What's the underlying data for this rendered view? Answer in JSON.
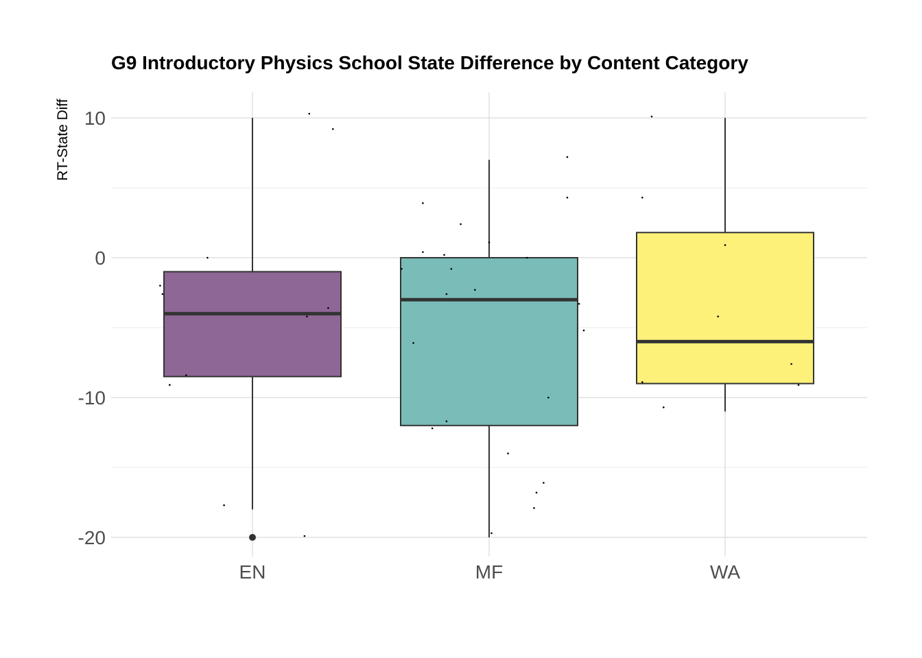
{
  "chart_data": {
    "type": "box",
    "title": "G9 Introductory Physics School State Difference by Content Category",
    "xlabel": "",
    "ylabel": "RT-State Diff",
    "ylim": [
      -21.5,
      11.5
    ],
    "yticks": [
      10,
      0,
      -10,
      -20
    ],
    "ytick_labels": [
      "10",
      "0",
      "-10",
      "-20"
    ],
    "grid": true,
    "legend": "none",
    "categories": [
      "EN",
      "MF",
      "WA"
    ],
    "boxes": [
      {
        "category": "EN",
        "color": "#8e6796",
        "whisker_low": -18,
        "q1": -8.5,
        "median": -4,
        "q3": -1,
        "whisker_high": 10,
        "outliers": [
          -20
        ]
      },
      {
        "category": "MF",
        "color": "#79bcb8",
        "whisker_low": -20,
        "q1": -12,
        "median": -3,
        "q3": 0,
        "whisker_high": 7,
        "outliers": []
      },
      {
        "category": "WA",
        "color": "#fef17a",
        "whisker_low": -11,
        "q1": -9,
        "median": -6,
        "q3": 1.8,
        "whisker_high": 10,
        "outliers": []
      }
    ],
    "jitter_points": [
      {
        "category": "EN",
        "dx": -0.39,
        "y": -2
      },
      {
        "category": "EN",
        "dx": -0.38,
        "y": -2.6
      },
      {
        "category": "EN",
        "dx": -0.35,
        "y": -9.1
      },
      {
        "category": "EN",
        "dx": -0.28,
        "y": -8.4
      },
      {
        "category": "EN",
        "dx": -0.19,
        "y": 0
      },
      {
        "category": "EN",
        "dx": -0.12,
        "y": -17.7
      },
      {
        "category": "EN",
        "dx": 0.22,
        "y": -19.9
      },
      {
        "category": "EN",
        "dx": 0.23,
        "y": -4.2
      },
      {
        "category": "EN",
        "dx": 0.24,
        "y": 10.3
      },
      {
        "category": "EN",
        "dx": 0.32,
        "y": -3.6
      },
      {
        "category": "EN",
        "dx": 0.34,
        "y": 9.2
      },
      {
        "category": "MF",
        "dx": -0.37,
        "y": -0.8
      },
      {
        "category": "MF",
        "dx": -0.32,
        "y": -6.1
      },
      {
        "category": "MF",
        "dx": -0.28,
        "y": 0.4
      },
      {
        "category": "MF",
        "dx": -0.28,
        "y": 3.9
      },
      {
        "category": "MF",
        "dx": -0.24,
        "y": -12.2
      },
      {
        "category": "MF",
        "dx": -0.19,
        "y": 0.2
      },
      {
        "category": "MF",
        "dx": -0.18,
        "y": -2.6
      },
      {
        "category": "MF",
        "dx": -0.18,
        "y": -11.7
      },
      {
        "category": "MF",
        "dx": -0.16,
        "y": -0.8
      },
      {
        "category": "MF",
        "dx": -0.12,
        "y": 2.4
      },
      {
        "category": "MF",
        "dx": -0.06,
        "y": -2.3
      },
      {
        "category": "MF",
        "dx": 0.0,
        "y": 1.1
      },
      {
        "category": "MF",
        "dx": 0.01,
        "y": -19.7
      },
      {
        "category": "MF",
        "dx": 0.08,
        "y": -14
      },
      {
        "category": "MF",
        "dx": 0.16,
        "y": 0
      },
      {
        "category": "MF",
        "dx": 0.19,
        "y": -17.9
      },
      {
        "category": "MF",
        "dx": 0.2,
        "y": -16.8
      },
      {
        "category": "MF",
        "dx": 0.23,
        "y": -16.1
      },
      {
        "category": "MF",
        "dx": 0.25,
        "y": -10
      },
      {
        "category": "MF",
        "dx": 0.33,
        "y": 7.2
      },
      {
        "category": "MF",
        "dx": 0.33,
        "y": 4.3
      },
      {
        "category": "MF",
        "dx": 0.38,
        "y": -3.3
      },
      {
        "category": "MF",
        "dx": 0.4,
        "y": -5.2
      },
      {
        "category": "WA",
        "dx": -0.35,
        "y": -8.9
      },
      {
        "category": "WA",
        "dx": -0.35,
        "y": 4.3
      },
      {
        "category": "WA",
        "dx": -0.31,
        "y": 10.1
      },
      {
        "category": "WA",
        "dx": -0.26,
        "y": -10.7
      },
      {
        "category": "WA",
        "dx": 0.0,
        "y": 0.9
      },
      {
        "category": "WA",
        "dx": -0.03,
        "y": -4.2
      },
      {
        "category": "WA",
        "dx": 0.28,
        "y": -7.6
      },
      {
        "category": "WA",
        "dx": 0.31,
        "y": -9.1
      }
    ]
  }
}
